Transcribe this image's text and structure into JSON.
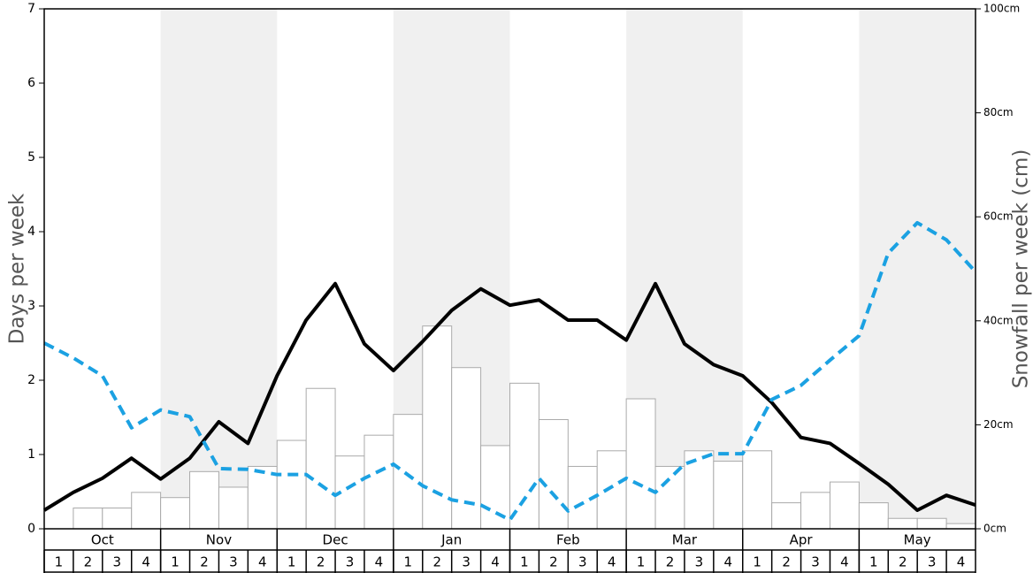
{
  "chart_data": {
    "type": "bar",
    "y_label": "Days per week",
    "y2_label": "Snowfall per week (cm)",
    "months": [
      "Oct",
      "Nov",
      "Dec",
      "Jan",
      "Feb",
      "Mar",
      "Apr",
      "May"
    ],
    "categories": [
      "1",
      "2",
      "3",
      "4",
      "1",
      "2",
      "3",
      "4",
      "1",
      "2",
      "3",
      "4",
      "1",
      "2",
      "3",
      "4",
      "1",
      "2",
      "3",
      "4",
      "1",
      "2",
      "3",
      "4",
      "1",
      "2",
      "3",
      "4",
      "1",
      "2",
      "3",
      "4"
    ],
    "x": [
      0,
      1,
      2,
      3,
      4,
      5,
      6,
      7,
      8,
      9,
      10,
      11,
      12,
      13,
      14,
      15,
      16,
      17,
      18,
      19,
      20,
      21,
      22,
      23,
      24,
      25,
      26,
      27,
      28,
      29,
      30,
      31,
      32
    ],
    "xlim": [
      0,
      32
    ],
    "ylim": [
      0,
      7
    ],
    "yticks": [
      0,
      1,
      2,
      3,
      4,
      5,
      6,
      7
    ],
    "y2lim": [
      0,
      100
    ],
    "y2ticks": [
      {
        "value": 0,
        "label": "0cm"
      },
      {
        "value": 20,
        "label": "20cm"
      },
      {
        "value": 40,
        "label": "40cm"
      },
      {
        "value": 60,
        "label": "60cm"
      },
      {
        "value": 80,
        "label": "80cm"
      },
      {
        "value": 100,
        "label": "100cm"
      }
    ],
    "series": [
      {
        "type": "bar",
        "axis": "y2",
        "color": "#ffffff",
        "values": [
          0,
          4,
          4,
          7,
          6,
          11,
          8,
          12,
          17,
          27,
          14,
          18,
          22,
          39,
          31,
          16,
          28,
          21,
          12,
          15,
          25,
          12,
          15,
          13,
          15,
          5,
          7,
          9,
          5,
          2,
          2,
          1
        ]
      },
      {
        "type": "line",
        "color": "#000000",
        "dashed": false,
        "values": [
          0.25,
          0.49,
          0.68,
          0.95,
          0.67,
          0.95,
          1.44,
          1.15,
          2.06,
          2.81,
          3.3,
          2.49,
          2.13,
          2.52,
          2.94,
          3.23,
          3.01,
          3.08,
          2.81,
          2.81,
          2.54,
          3.3,
          2.49,
          2.21,
          2.06,
          1.7,
          1.23,
          1.15,
          0.88,
          0.6,
          0.25,
          0.45,
          0.32
        ]
      },
      {
        "type": "line",
        "color": "#1ba1e2",
        "dashed": true,
        "values": [
          2.5,
          2.3,
          2.06,
          1.36,
          1.6,
          1.51,
          0.81,
          0.8,
          0.73,
          0.73,
          0.45,
          0.68,
          0.87,
          0.58,
          0.39,
          0.32,
          0.12,
          0.68,
          0.24,
          0.45,
          0.68,
          0.49,
          0.87,
          1.01,
          1.01,
          1.74,
          1.93,
          2.27,
          2.6,
          3.71,
          4.12,
          3.89,
          3.46
        ]
      }
    ]
  }
}
